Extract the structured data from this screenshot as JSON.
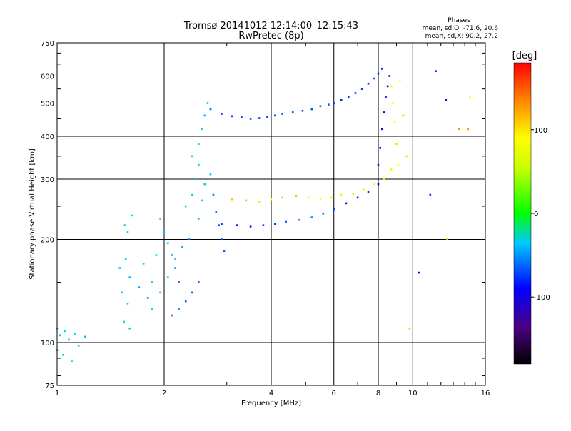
{
  "chart_data": {
    "type": "scatter",
    "title": "Tromsø 20141012 12:14:00–12:15:43",
    "subtitle": "RwPretec (8p)",
    "xlabel": "Frequency [MHz]",
    "ylabel": "Stationary phase Virtual Height [km]",
    "x_scale": "log",
    "y_scale": "log",
    "xlim": [
      1,
      16
    ],
    "ylim": [
      75,
      750
    ],
    "x_ticks": [
      1,
      2,
      4,
      6,
      8,
      10,
      16
    ],
    "x_tick_labels": [
      "1",
      "2",
      "4",
      "6",
      "8",
      "10",
      "16"
    ],
    "y_ticks": [
      75,
      100,
      200,
      300,
      400,
      500,
      600,
      750
    ],
    "y_tick_labels": [
      "75",
      "100",
      "200",
      "300",
      "400",
      "500",
      "600",
      "750"
    ],
    "grid": true,
    "stats": {
      "title": "Phases",
      "line_o": "mean, sd,O: -71.6, 20.6",
      "line_x": "mean, sd,X:  90.2, 27.2"
    },
    "colorbar": {
      "label": "[deg]",
      "range": [
        -180,
        180
      ],
      "ticks": [
        100,
        0,
        -100
      ],
      "tick_labels": [
        "100",
        "0",
        "-100"
      ]
    },
    "series": [
      {
        "x": [
          1.0,
          1.02,
          1.05,
          1.08,
          1.12,
          1.15,
          1.2,
          1.0,
          1.04,
          1.1,
          1.55,
          1.58,
          1.62,
          1.5,
          1.56,
          1.6,
          1.52,
          1.58,
          1.54,
          1.6,
          1.7,
          1.8,
          1.85,
          1.75,
          1.9,
          1.95,
          2.0,
          2.05,
          2.1,
          2.15,
          2.2,
          1.85,
          1.95,
          2.05,
          2.15,
          2.25,
          2.35,
          2.3,
          2.4,
          2.45,
          2.5,
          2.4,
          2.5,
          2.55,
          2.6,
          2.65,
          2.5,
          2.55,
          2.6,
          2.7,
          2.75,
          2.8,
          2.85,
          2.9,
          2.95,
          2.1,
          2.2,
          2.3,
          2.4,
          2.5
        ],
        "y": [
          110,
          105,
          108,
          102,
          106,
          98,
          104,
          95,
          92,
          88,
          220,
          210,
          235,
          165,
          175,
          155,
          140,
          130,
          115,
          110,
          145,
          135,
          150,
          170,
          180,
          230,
          210,
          195,
          180,
          165,
          150,
          125,
          140,
          155,
          175,
          190,
          200,
          250,
          270,
          300,
          330,
          350,
          380,
          420,
          460,
          500,
          230,
          260,
          290,
          310,
          270,
          240,
          220,
          200,
          185,
          120,
          125,
          132,
          140,
          150
        ],
        "phase": [
          -40,
          -40,
          -40,
          -45,
          -40,
          -35,
          -45,
          -40,
          -40,
          -40,
          -30,
          -35,
          -30,
          -40,
          -40,
          -45,
          -40,
          -40,
          -30,
          -35,
          -50,
          -60,
          -40,
          -40,
          -35,
          -30,
          -40,
          -40,
          -50,
          -60,
          -70,
          -40,
          -40,
          -30,
          -40,
          -50,
          -70,
          -30,
          -40,
          -40,
          -35,
          -30,
          -30,
          -30,
          -45,
          -40,
          -50,
          -40,
          -30,
          -40,
          -60,
          -70,
          -80,
          -80,
          -70,
          -60,
          -60,
          -70,
          -80,
          -80
        ]
      },
      {
        "x": [
          2.7,
          2.9,
          3.1,
          3.3,
          3.5,
          3.7,
          3.9,
          4.1,
          4.3,
          4.6,
          4.9,
          5.2,
          5.5,
          5.8,
          6.0
        ],
        "y": [
          480,
          465,
          458,
          455,
          450,
          452,
          455,
          460,
          465,
          470,
          475,
          480,
          490,
          495,
          500
        ],
        "phase": [
          -70,
          -80,
          -85,
          -80,
          -75,
          -80,
          -85,
          -80,
          -75,
          -80,
          -80,
          -75,
          -70,
          -70,
          -70
        ]
      },
      {
        "x": [
          6.0,
          6.3,
          6.6,
          6.9,
          7.2,
          7.5,
          7.8,
          8.0,
          8.2
        ],
        "y": [
          500,
          510,
          520,
          535,
          550,
          570,
          590,
          610,
          630
        ],
        "phase": [
          -80,
          -90,
          -85,
          -80,
          -85,
          -90,
          -80,
          -90,
          -100
        ]
      },
      {
        "x": [
          2.9,
          3.2,
          3.5,
          3.8,
          4.1,
          4.4,
          4.8,
          5.2,
          5.6,
          6.0,
          6.5,
          7.0,
          7.5,
          8.0
        ],
        "y": [
          222,
          220,
          218,
          220,
          222,
          225,
          228,
          232,
          238,
          245,
          255,
          265,
          275,
          290
        ],
        "phase": [
          -90,
          -95,
          -90,
          -85,
          -80,
          -70,
          -60,
          -60,
          -70,
          -80,
          -85,
          -90,
          -90,
          -100
        ]
      },
      {
        "x": [
          3.1,
          3.4,
          3.7,
          4.0,
          4.3,
          4.7,
          5.1,
          5.5,
          5.9,
          6.3,
          6.8,
          7.3,
          7.8,
          8.3,
          8.7
        ],
        "y": [
          262,
          260,
          258,
          262,
          265,
          268,
          265,
          263,
          265,
          270,
          272,
          280,
          290,
          300,
          320
        ],
        "phase": [
          120,
          130,
          110,
          100,
          120,
          130,
          100,
          90,
          80,
          90,
          110,
          100,
          90,
          80,
          90
        ]
      },
      {
        "x": [
          8.0,
          8.1,
          8.2,
          8.3,
          8.4,
          8.5,
          8.6,
          8.7,
          8.8,
          8.9,
          9.0,
          9.1
        ],
        "y": [
          330,
          370,
          420,
          470,
          520,
          560,
          600,
          560,
          500,
          440,
          380,
          330
        ],
        "phase": [
          -90,
          -100,
          -110,
          -100,
          -90,
          -100,
          -110,
          80,
          90,
          100,
          110,
          100
        ]
      },
      {
        "x": [
          9.2,
          9.4,
          9.6,
          9.8,
          10.4,
          11.2,
          11.6,
          12.4,
          12.5,
          13.5,
          14.3,
          14.5
        ],
        "y": [
          580,
          460,
          350,
          110,
          160,
          270,
          620,
          510,
          200,
          420,
          420,
          520
        ],
        "phase": [
          100,
          120,
          110,
          120,
          -110,
          -80,
          -100,
          -120,
          120,
          130,
          140,
          100
        ]
      }
    ]
  }
}
